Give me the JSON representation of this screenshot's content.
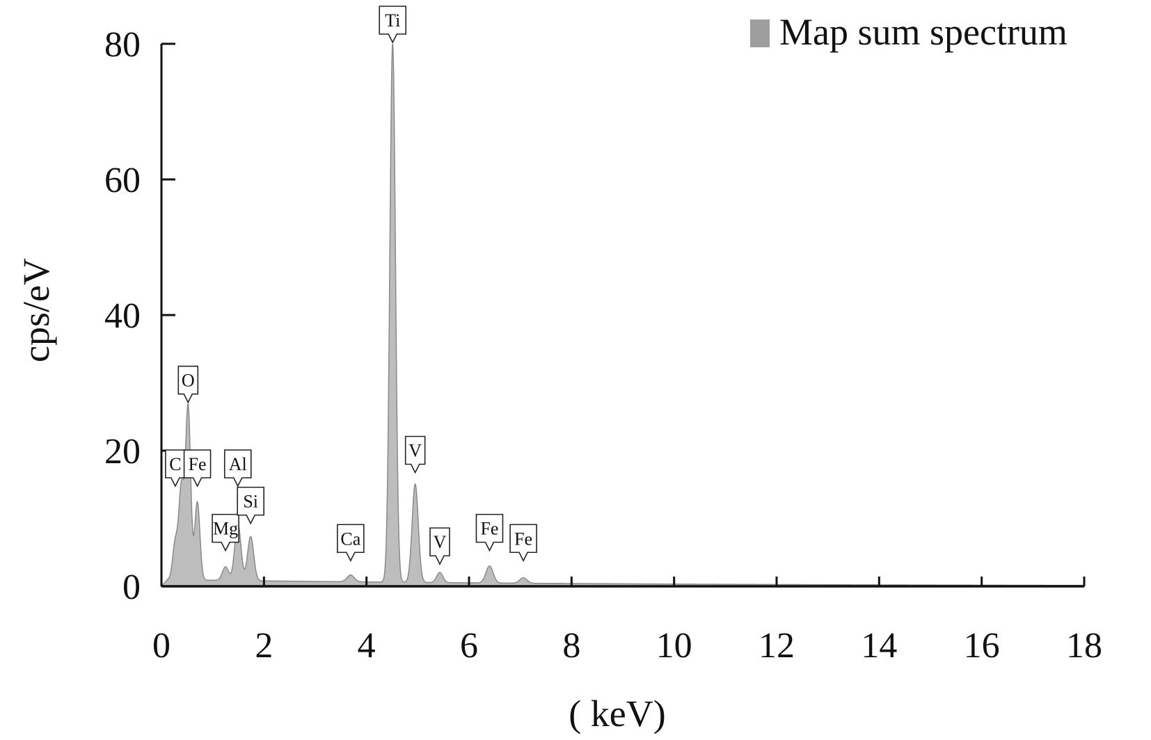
{
  "chart_data": {
    "type": "area",
    "xlabel": "( keV)",
    "ylabel": "cps/eV",
    "xlim": [
      0,
      18
    ],
    "ylim": [
      0,
      80
    ],
    "x_ticks": [
      0,
      2,
      4,
      6,
      8,
      10,
      12,
      14,
      16,
      18
    ],
    "y_ticks": [
      0,
      20,
      40,
      60,
      80
    ],
    "grid": false,
    "legend": {
      "position": "top-right",
      "entries": [
        "Map sum spectrum"
      ]
    },
    "colors": {
      "fill": "#bdbdbd",
      "stroke": "#8a8a8a",
      "legend_swatch": "#9e9e9e",
      "axis": "#111111"
    },
    "series": [
      {
        "name": "Map sum spectrum",
        "baseline": 1.0,
        "peaks": [
          {
            "x": 0.27,
            "y": 6,
            "width": 0.05
          },
          {
            "x": 0.39,
            "y": 14,
            "width": 0.05
          },
          {
            "x": 0.52,
            "y": 26,
            "width": 0.05
          },
          {
            "x": 0.7,
            "y": 12,
            "width": 0.05
          },
          {
            "x": 1.25,
            "y": 2.5,
            "width": 0.06
          },
          {
            "x": 1.49,
            "y": 9,
            "width": 0.06
          },
          {
            "x": 1.74,
            "y": 7,
            "width": 0.06
          },
          {
            "x": 3.69,
            "y": 1.5,
            "width": 0.07
          },
          {
            "x": 4.51,
            "y": 80,
            "width": 0.055
          },
          {
            "x": 4.95,
            "y": 15,
            "width": 0.06
          },
          {
            "x": 5.43,
            "y": 2,
            "width": 0.06
          },
          {
            "x": 6.4,
            "y": 3,
            "width": 0.07
          },
          {
            "x": 7.06,
            "y": 1.3,
            "width": 0.07
          }
        ]
      }
    ],
    "annotations": [
      {
        "label": "C",
        "x": 0.27,
        "y": 16
      },
      {
        "label": "O",
        "x": 0.52,
        "y": 27
      },
      {
        "label": "Fe",
        "x": 0.7,
        "y": 16
      },
      {
        "label": "Mg",
        "x": 1.25,
        "y": 6.5
      },
      {
        "label": "Al",
        "x": 1.49,
        "y": 16
      },
      {
        "label": "Si",
        "x": 1.74,
        "y": 10.5
      },
      {
        "label": "Ca",
        "x": 3.69,
        "y": 5
      },
      {
        "label": "Ti",
        "x": 4.51,
        "y": 81
      },
      {
        "label": "V",
        "x": 4.95,
        "y": 18
      },
      {
        "label": "V",
        "x": 5.43,
        "y": 4.5
      },
      {
        "label": "Fe",
        "x": 6.4,
        "y": 6.5
      },
      {
        "label": "Fe",
        "x": 7.06,
        "y": 5
      }
    ]
  }
}
